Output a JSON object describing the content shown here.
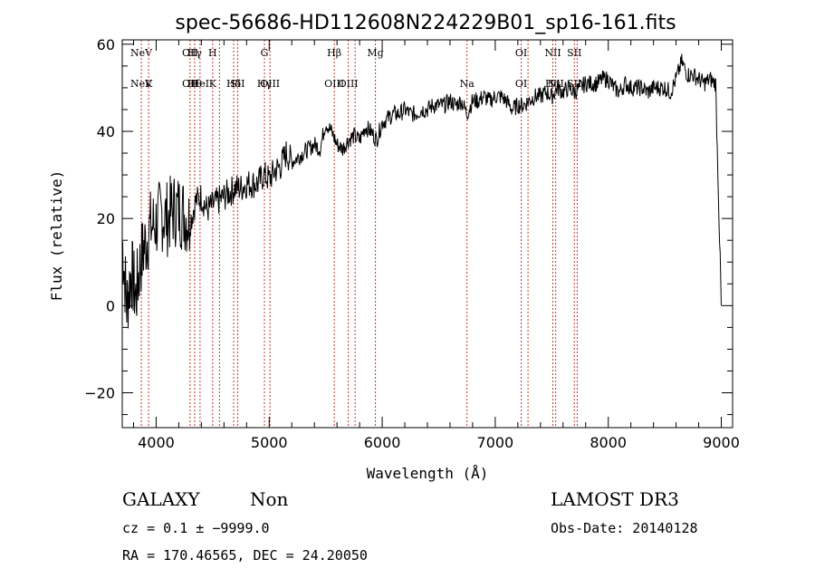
{
  "chart_data": {
    "type": "line",
    "title": "spec-56686-HD112608N224229B01_sp16-161.fits",
    "xlabel": "Wavelength (Å)",
    "ylabel": "Flux (relative)",
    "xlim": [
      3700,
      9100
    ],
    "ylim": [
      -28,
      61
    ],
    "x_ticks": [
      {
        "value": 4000,
        "label": "4000"
      },
      {
        "value": 5000,
        "label": "5000"
      },
      {
        "value": 6000,
        "label": "6000"
      },
      {
        "value": 7000,
        "label": "7000"
      },
      {
        "value": 8000,
        "label": "8000"
      },
      {
        "value": 9000,
        "label": "9000"
      }
    ],
    "y_ticks": [
      {
        "value": -20,
        "label": "−20"
      },
      {
        "value": 0,
        "label": "0"
      },
      {
        "value": 20,
        "label": "20"
      },
      {
        "value": 40,
        "label": "40"
      },
      {
        "value": 60,
        "label": "60"
      }
    ],
    "series": [
      {
        "name": "spectrum",
        "x": [
          3700,
          3740,
          3780,
          3820,
          3860,
          3900,
          3950,
          4000,
          4050,
          4100,
          4150,
          4200,
          4250,
          4300,
          4350,
          4400,
          4450,
          4500,
          4550,
          4600,
          4650,
          4700,
          4750,
          4800,
          4850,
          4900,
          4950,
          5000,
          5050,
          5100,
          5150,
          5200,
          5250,
          5300,
          5350,
          5400,
          5450,
          5500,
          5550,
          5600,
          5650,
          5700,
          5750,
          5800,
          5850,
          5900,
          5950,
          6000,
          6050,
          6100,
          6150,
          6200,
          6250,
          6300,
          6350,
          6400,
          6450,
          6500,
          6550,
          6600,
          6650,
          6700,
          6750,
          6800,
          6850,
          6900,
          6950,
          7000,
          7050,
          7100,
          7150,
          7200,
          7250,
          7300,
          7350,
          7400,
          7450,
          7500,
          7550,
          7600,
          7650,
          7700,
          7750,
          7800,
          7850,
          7900,
          7950,
          8000,
          8050,
          8100,
          8150,
          8200,
          8250,
          8300,
          8350,
          8400,
          8450,
          8500,
          8550,
          8600,
          8650,
          8700,
          8750,
          8800,
          8850,
          8900,
          8950,
          9000
        ],
        "y": [
          15,
          0,
          8,
          2,
          10,
          14,
          18,
          19,
          21,
          20,
          22,
          22,
          21,
          19,
          24,
          25,
          22,
          23,
          24,
          25,
          26,
          27,
          27,
          28,
          28,
          28,
          30,
          29,
          31,
          32,
          35,
          33,
          34,
          35,
          36,
          37,
          36,
          42,
          40,
          37,
          36,
          38,
          39,
          38,
          41,
          40,
          38,
          42,
          43,
          44,
          44,
          45,
          44,
          44,
          45,
          45,
          46,
          46,
          46,
          47,
          46,
          47,
          44,
          47,
          47,
          48,
          47,
          48,
          48,
          47,
          45,
          46,
          46,
          47,
          48,
          48,
          49,
          48,
          50,
          49,
          50,
          49,
          50,
          51,
          51,
          51,
          52,
          52,
          50,
          49,
          51,
          50,
          50,
          50,
          49,
          50,
          50,
          50,
          49,
          52,
          56,
          53,
          53,
          52,
          51,
          52,
          51,
          0
        ]
      }
    ],
    "line_markers": [
      {
        "wavelength": 3869,
        "top": "NeV",
        "bottom": "NeV"
      },
      {
        "wavelength": 3933,
        "top": "",
        "bottom": "K"
      },
      {
        "wavelength": 4300,
        "top": "OII",
        "bottom": "OII"
      },
      {
        "wavelength": 4340,
        "top": "Hγ",
        "bottom": "Hθ"
      },
      {
        "wavelength": 4388,
        "top": "",
        "bottom": "HeI"
      },
      {
        "wavelength": 4500,
        "top": "H",
        "bottom": "K"
      },
      {
        "wavelength": 4560,
        "top": "",
        "bottom": ""
      },
      {
        "wavelength": 4686,
        "top": "",
        "bottom": "Hδ"
      },
      {
        "wavelength": 4720,
        "top": "",
        "bottom": "SII"
      },
      {
        "wavelength": 4958,
        "top": "G",
        "bottom": "Hγ"
      },
      {
        "wavelength": 5007,
        "top": "",
        "bottom": "OIII"
      },
      {
        "wavelength": 5576,
        "top": "Hβ",
        "bottom": "OIII"
      },
      {
        "wavelength": 5700,
        "top": "",
        "bottom": "OIII"
      },
      {
        "wavelength": 5760,
        "top": "",
        "bottom": ""
      },
      {
        "wavelength": 5940,
        "top": "Mg",
        "bottom": ""
      },
      {
        "wavelength": 6750,
        "top": "",
        "bottom": "Na"
      },
      {
        "wavelength": 7230,
        "top": "OI",
        "bottom": "OI"
      },
      {
        "wavelength": 7290,
        "top": "",
        "bottom": ""
      },
      {
        "wavelength": 7510,
        "top": "NII",
        "bottom": "Hα"
      },
      {
        "wavelength": 7535,
        "top": "",
        "bottom": "NII"
      },
      {
        "wavelength": 7700,
        "top": "SII",
        "bottom": "SII"
      },
      {
        "wavelength": 7725,
        "top": "",
        "bottom": ""
      }
    ]
  },
  "footer": {
    "class_label": "GALAXY",
    "subclass_label": "Non",
    "survey": "LAMOST DR3",
    "cz_line": "cz = 0.1 ± −9999.0",
    "obs_date": "Obs-Date: 20140128",
    "coords": "RA = 170.46565, DEC =  24.20050"
  }
}
